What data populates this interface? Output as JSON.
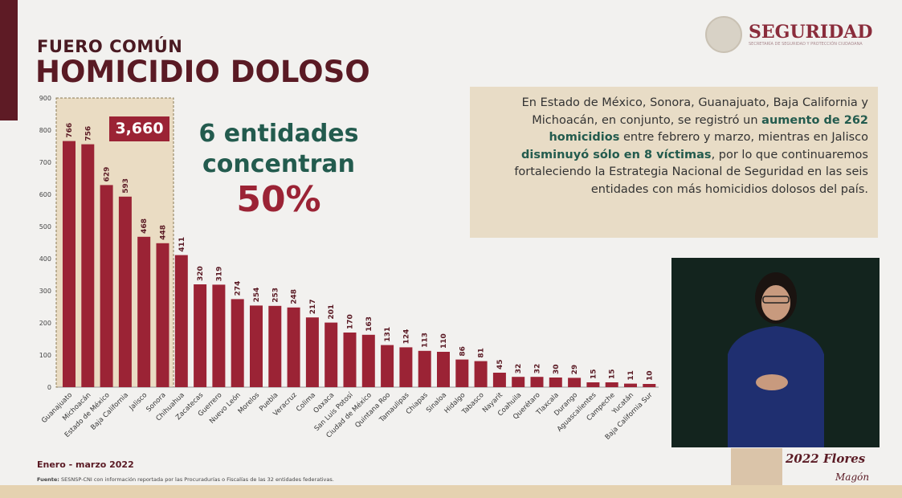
{
  "header": {
    "kicker": "FUERO COMÚN",
    "title": "HOMICIDIO DOLOSO"
  },
  "logo": {
    "name": "SEGURIDAD",
    "subtitle": "SECRETARÍA DE SEGURIDAD Y PROTECCIÓN CIUDADANA"
  },
  "highlight": {
    "total": "3,660",
    "line1": "6 entidades",
    "line2": "concentran",
    "percent": "50%"
  },
  "textbox": {
    "p1": "En Estado de México, Sonora, Guanajuato, Baja California y Michoacán, en conjunto, se registró un ",
    "b1": "aumento de 262 homicidios",
    "p2": " entre febrero y marzo, mientras en Jalisco ",
    "b2": "disminuyó sólo en 8 víctimas",
    "p3": ", por lo que continuaremos fortaleciendo la Estrategia Nacional de Seguridad en las seis entidades con más homicidios dolosos del país."
  },
  "footer": {
    "period": "Enero - marzo 2022",
    "source_label": "Fuente:",
    "source": "SESNSP-CNI con información reportada por las Procuradurías o Fiscalías de las 32 entidades federativas."
  },
  "badge": {
    "text": "2022 Flores Magón"
  },
  "colors": {
    "bar": "#9b2335",
    "accent_green": "#235b4e",
    "title": "#5a1a24"
  },
  "chart_data": {
    "type": "bar",
    "categories": [
      "Guanajuato",
      "Michoacán",
      "Estado de México",
      "Baja California",
      "Jalisco",
      "Sonora",
      "Chihuahua",
      "Zacatecas",
      "Guerrero",
      "Nuevo León",
      "Morelos",
      "Puebla",
      "Veracruz",
      "Colima",
      "Oaxaca",
      "San Luis Potosí",
      "Ciudad de México",
      "Quintana Roo",
      "Tamaulipas",
      "Chiapas",
      "Sinaloa",
      "Hidalgo",
      "Tabasco",
      "Nayarit",
      "Coahuila",
      "Querétaro",
      "Tlaxcala",
      "Durango",
      "Aguascalientes",
      "Campeche",
      "Yucatán",
      "Baja California Sur"
    ],
    "values": [
      766,
      756,
      629,
      593,
      468,
      448,
      411,
      320,
      319,
      274,
      254,
      253,
      248,
      217,
      201,
      170,
      163,
      131,
      124,
      113,
      110,
      86,
      81,
      45,
      32,
      32,
      30,
      29,
      15,
      15,
      11,
      10
    ],
    "yticks": [
      0,
      100,
      200,
      300,
      400,
      500,
      600,
      700,
      800,
      900
    ],
    "ylim": [
      0,
      900
    ],
    "grid": false
  }
}
